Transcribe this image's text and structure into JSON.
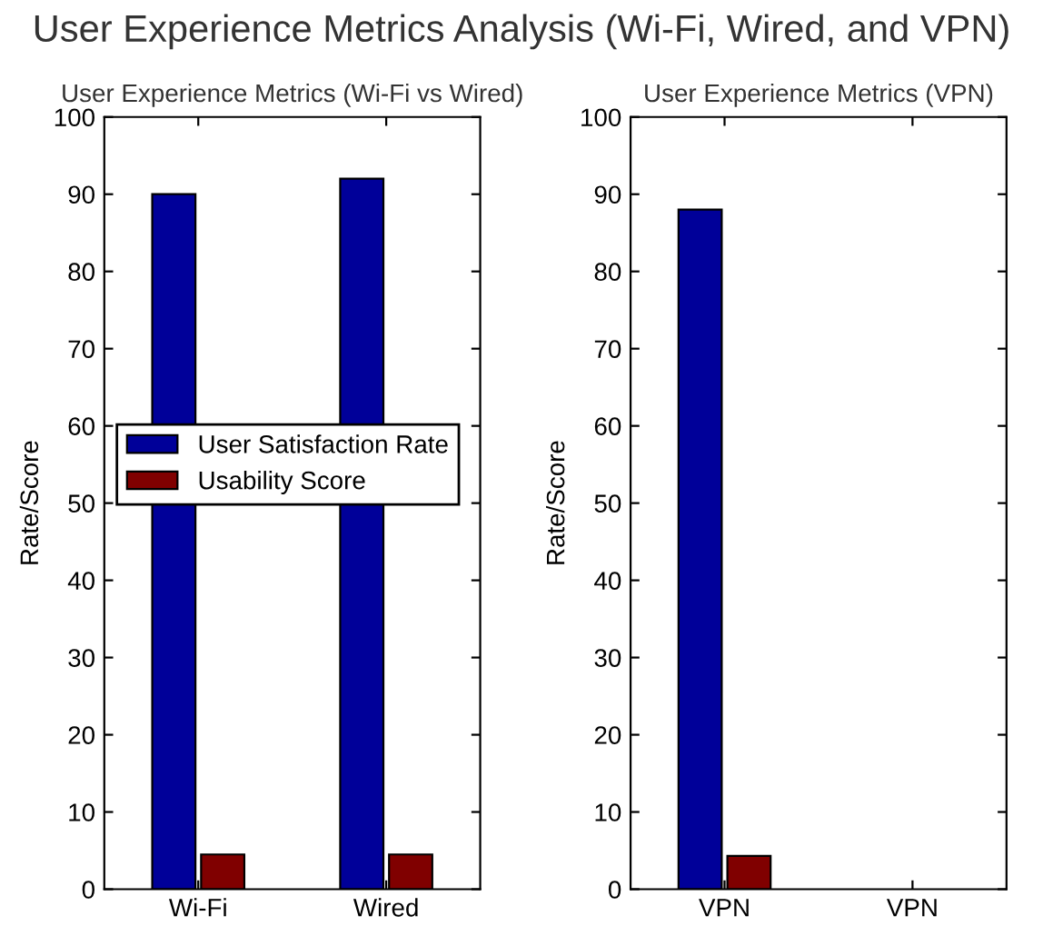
{
  "chart_data": [
    {
      "type": "bar",
      "title": "User Experience Metrics (Wi-Fi vs Wired)",
      "annotations": [
        "User Experience Metrics Analysis (Wi-Fi, Wired, and VPN)"
      ],
      "ylabel": "Rate/Score",
      "categories": [
        "Wi-Fi",
        "Wired"
      ],
      "series": [
        {
          "name": "User Satisfaction Rate",
          "color": "#000099",
          "values": [
            90,
            92
          ]
        },
        {
          "name": "Usability Score",
          "color": "#800000",
          "values": [
            4.5,
            4.5
          ]
        }
      ],
      "ylim": [
        0,
        100
      ],
      "yticks": [
        0,
        10,
        20,
        30,
        40,
        50,
        60,
        70,
        80,
        90,
        100
      ],
      "legend": "left",
      "grid": false
    },
    {
      "type": "bar",
      "title": "User Experience Metrics (VPN)",
      "ylabel": "Rate/Score",
      "categories": [
        "VPN",
        "VPN"
      ],
      "series": [
        {
          "color": "#000099",
          "values": [
            88,
            null
          ]
        },
        {
          "color": "#800000",
          "values": [
            4.3,
            null
          ]
        }
      ],
      "ylim": [
        0,
        100
      ],
      "yticks": [
        0,
        10,
        20,
        30,
        40,
        50,
        60,
        70,
        80,
        90,
        100
      ],
      "legend": false,
      "grid": false
    }
  ]
}
